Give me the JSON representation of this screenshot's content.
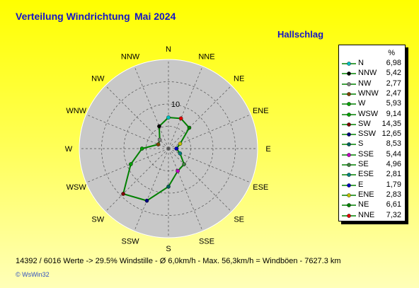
{
  "title": "Verteilung Windrichtung",
  "period": "Mai 2024",
  "station": "Hallschlag",
  "legend_header": "%",
  "footer": "14392 / 6016 Werte  -> 29.5% Windstille   -   Ø 6,0km/h  -  Max. 56,3km/h = Windböen   -   7627.3 km",
  "logo": "© WsWin32",
  "chart_data": {
    "type": "radar",
    "radial_tick_label": "10",
    "radial_tick_value": 10,
    "radial_max": 20,
    "ring_count": 4,
    "directions": [
      "N",
      "NNE",
      "NE",
      "ENE",
      "E",
      "ESE",
      "SE",
      "SSE",
      "S",
      "SSW",
      "SW",
      "WSW",
      "W",
      "WNW",
      "NW",
      "NNW"
    ],
    "values": [
      6.98,
      7.32,
      6.61,
      2.83,
      1.79,
      2.81,
      4.96,
      5.44,
      8.53,
      12.65,
      14.35,
      9.14,
      5.93,
      2.47,
      2.77,
      5.42
    ],
    "line_color": "#008000",
    "marker_colors": {
      "N": "#00c0c0",
      "NNE": "#e00000",
      "NE": "#008000",
      "ENE": "#c0c000",
      "E": "#0000c0",
      "ESE": "#008080",
      "SE": "#408040",
      "SSE": "#c000c0",
      "S": "#006060",
      "SSW": "#000080",
      "SW": "#800000",
      "WSW": "#00a000",
      "W": "#00a000",
      "WNW": "#804000",
      "NW": "#808080",
      "NNW": "#000000"
    },
    "legend": [
      {
        "name": "N",
        "value": "6,98",
        "color": "#00c0c0"
      },
      {
        "name": "NNW",
        "value": "5,42",
        "color": "#000000"
      },
      {
        "name": "NW",
        "value": "2,77",
        "color": "#808080"
      },
      {
        "name": "WNW",
        "value": "2,47",
        "color": "#804000"
      },
      {
        "name": "W",
        "value": "5,93",
        "color": "#00a000"
      },
      {
        "name": "WSW",
        "value": "9,14",
        "color": "#00a000"
      },
      {
        "name": "SW",
        "value": "14,35",
        "color": "#800000"
      },
      {
        "name": "SSW",
        "value": "12,65",
        "color": "#000080"
      },
      {
        "name": "S",
        "value": "8,53",
        "color": "#006060"
      },
      {
        "name": "SSE",
        "value": "5,44",
        "color": "#c000c0"
      },
      {
        "name": "SE",
        "value": "4,96",
        "color": "#408040"
      },
      {
        "name": "ESE",
        "value": "2,81",
        "color": "#008080"
      },
      {
        "name": "E",
        "value": "1,79",
        "color": "#0000c0"
      },
      {
        "name": "ENE",
        "value": "2,83",
        "color": "#c0c000"
      },
      {
        "name": "NE",
        "value": "6,61",
        "color": "#008000"
      },
      {
        "name": "NNE",
        "value": "7,32",
        "color": "#e00000"
      }
    ]
  }
}
